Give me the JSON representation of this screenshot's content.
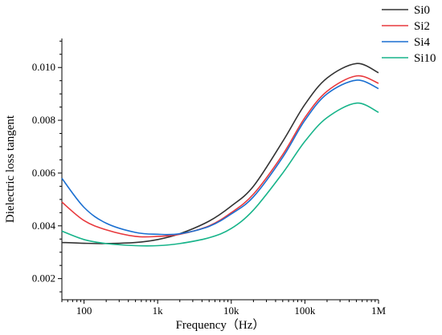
{
  "chart_data": {
    "type": "line",
    "title": "",
    "xlabel": "Frequency（Hz）",
    "ylabel": "Dielectric loss tangent",
    "xscale": "log",
    "xlim": [
      50,
      1000000
    ],
    "ylim": [
      0.0012,
      0.0111
    ],
    "x_ticks": [
      {
        "value": 100,
        "label": "100"
      },
      {
        "value": 1000,
        "label": "1k"
      },
      {
        "value": 10000,
        "label": "10k"
      },
      {
        "value": 100000,
        "label": "100k"
      },
      {
        "value": 1000000,
        "label": "1M"
      }
    ],
    "y_ticks": [
      {
        "value": 0.002,
        "label": "0.002"
      },
      {
        "value": 0.004,
        "label": "0.004"
      },
      {
        "value": 0.006,
        "label": "0.006"
      },
      {
        "value": 0.008,
        "label": "0.008"
      },
      {
        "value": 0.01,
        "label": "0.010"
      }
    ],
    "grid": false,
    "legend_position": "top-right",
    "x": [
      50,
      100,
      200,
      500,
      1000,
      2000,
      5000,
      10000,
      20000,
      50000,
      100000,
      200000,
      500000,
      1000000
    ],
    "series": [
      {
        "name": "Si0",
        "color": "#333333",
        "values": [
          0.00337,
          0.00334,
          0.00333,
          0.00337,
          0.00348,
          0.0037,
          0.00418,
          0.00475,
          0.0055,
          0.0072,
          0.0086,
          0.0096,
          0.01015,
          0.0098
        ]
      },
      {
        "name": "Si2",
        "color": "#e8393d",
        "values": [
          0.0049,
          0.0042,
          0.00385,
          0.0036,
          0.0036,
          0.00368,
          0.004,
          0.0045,
          0.0052,
          0.0067,
          0.0081,
          0.0091,
          0.00968,
          0.0094
        ]
      },
      {
        "name": "Si4",
        "color": "#1a6fd1",
        "values": [
          0.0058,
          0.0047,
          0.0041,
          0.00375,
          0.00368,
          0.0037,
          0.00398,
          0.00445,
          0.0051,
          0.0066,
          0.008,
          0.009,
          0.00952,
          0.0092
        ]
      },
      {
        "name": "Si10",
        "color": "#17b48a",
        "values": [
          0.0038,
          0.00348,
          0.00333,
          0.00325,
          0.00325,
          0.00333,
          0.00355,
          0.0039,
          0.0046,
          0.006,
          0.0072,
          0.0081,
          0.00865,
          0.0083
        ]
      }
    ]
  }
}
